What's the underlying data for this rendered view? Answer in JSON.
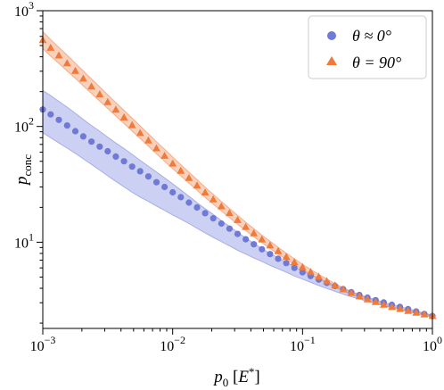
{
  "chart_data": {
    "type": "scatter",
    "xscale": "log",
    "yscale": "log",
    "xlim": [
      0.001,
      1
    ],
    "ylim": [
      1.8,
      1000
    ],
    "xlabel": "p_0 [E^*]",
    "ylabel": "p_conc",
    "xticks": [
      {
        "value": 0.001,
        "base": "10",
        "exp": "−3"
      },
      {
        "value": 0.01,
        "base": "10",
        "exp": "−2"
      },
      {
        "value": 0.1,
        "base": "10",
        "exp": "−1"
      },
      {
        "value": 1,
        "base": "10",
        "exp": "0"
      }
    ],
    "yticks": [
      {
        "value": 10,
        "base": "10",
        "exp": "1"
      },
      {
        "value": 100,
        "base": "10",
        "exp": "2"
      },
      {
        "value": 1000,
        "base": "10",
        "exp": "3"
      }
    ],
    "legend_position": "top-right",
    "series": [
      {
        "name": "θ ≈ 0°",
        "legend_label": "θ ≈ 0°",
        "marker": "circle",
        "color": "#6f79d6",
        "band_color": "#9aa2e6",
        "x": [
          0.001,
          0.00115,
          0.00133,
          0.00154,
          0.00178,
          0.00205,
          0.00237,
          0.00274,
          0.00316,
          0.00365,
          0.00422,
          0.00487,
          0.00562,
          0.0065,
          0.0075,
          0.00866,
          0.01,
          0.01155,
          0.01334,
          0.0154,
          0.01778,
          0.02054,
          0.02371,
          0.02738,
          0.03162,
          0.03652,
          0.04217,
          0.0487,
          0.05623,
          0.06494,
          0.07499,
          0.0866,
          0.1,
          0.11548,
          0.13335,
          0.15399,
          0.17783,
          0.20535,
          0.23714,
          0.27384,
          0.31623,
          0.36517,
          0.4217,
          0.48697,
          0.56234,
          0.64938,
          0.74989,
          0.86596,
          1.0
        ],
        "y": [
          140,
          127,
          114,
          102,
          91,
          82,
          74,
          67,
          61,
          55,
          50,
          45,
          41,
          37,
          33,
          30,
          27,
          24.5,
          22,
          20,
          17.8,
          16.1,
          14.5,
          13.1,
          11.8,
          10.6,
          9.6,
          8.7,
          7.9,
          7.2,
          6.6,
          6.0,
          5.5,
          5.1,
          4.75,
          4.45,
          4.18,
          3.93,
          3.7,
          3.5,
          3.32,
          3.16,
          3.02,
          2.88,
          2.76,
          2.64,
          2.52,
          2.4,
          2.3
        ],
        "band_lower": [
          88,
          80,
          72,
          65,
          58.5,
          52.5,
          47,
          42,
          37.5,
          33.5,
          30,
          27,
          24.5,
          22.5,
          20.5,
          18.8,
          17.2,
          15.8,
          14.5,
          13.2,
          12,
          11,
          10.1,
          9.3,
          8.5,
          7.9,
          7.3,
          6.8,
          6.3,
          5.9,
          5.5,
          5.1,
          4.8,
          4.5,
          4.22,
          3.98,
          3.76,
          3.56,
          3.38,
          3.22,
          3.08,
          2.95,
          2.83,
          2.72,
          2.62,
          2.52,
          2.43,
          2.34,
          2.26
        ],
        "band_upper": [
          205,
          185,
          165,
          147,
          130,
          115,
          102,
          91,
          81,
          72,
          64.5,
          57.5,
          51,
          45.5,
          40.5,
          36,
          32,
          28.3,
          25,
          22,
          19.5,
          17.4,
          15.4,
          13.7,
          12.2,
          10.9,
          9.8,
          8.8,
          8.0,
          7.3,
          6.7,
          6.15,
          5.68,
          5.25,
          4.88,
          4.55,
          4.25,
          3.98,
          3.74,
          3.53,
          3.35,
          3.18,
          3.03,
          2.9,
          2.78,
          2.66,
          2.55,
          2.44,
          2.34
        ]
      },
      {
        "name": "θ = 90°",
        "legend_label": "θ = 90°",
        "marker": "triangle",
        "color": "#f07a3a",
        "band_color": "#f4a27a",
        "x": [
          0.001,
          0.00115,
          0.00133,
          0.00154,
          0.00178,
          0.00205,
          0.00237,
          0.00274,
          0.00316,
          0.00365,
          0.00422,
          0.00487,
          0.00562,
          0.0065,
          0.0075,
          0.00866,
          0.01,
          0.01155,
          0.01334,
          0.0154,
          0.01778,
          0.02054,
          0.02371,
          0.02738,
          0.03162,
          0.03652,
          0.04217,
          0.0487,
          0.05623,
          0.06494,
          0.07499,
          0.0866,
          0.1,
          0.11548,
          0.13335,
          0.15399,
          0.17783,
          0.20535,
          0.23714,
          0.27384,
          0.31623,
          0.36517,
          0.4217,
          0.48697,
          0.56234,
          0.64938,
          0.74989,
          0.86596,
          1.0
        ],
        "y": [
          560,
          480,
          412,
          353,
          303,
          260,
          222,
          190,
          163,
          140,
          120,
          103,
          88,
          76,
          65,
          56,
          48,
          41.5,
          36,
          31,
          27,
          23.5,
          20.5,
          17.9,
          15.6,
          13.6,
          12.0,
          10.6,
          9.4,
          8.4,
          7.5,
          6.75,
          6.1,
          5.55,
          5.05,
          4.62,
          4.25,
          3.93,
          3.66,
          3.42,
          3.22,
          3.05,
          2.9,
          2.77,
          2.66,
          2.56,
          2.47,
          2.39,
          2.32
        ],
        "band_lower": [
          470,
          405,
          350,
          301,
          260,
          224,
          193,
          166,
          143,
          123,
          106,
          91,
          78.5,
          67.5,
          58,
          50,
          43.2,
          37.4,
          32.4,
          28.1,
          24.4,
          21.3,
          18.6,
          16.3,
          14.3,
          12.6,
          11.1,
          9.9,
          8.8,
          7.9,
          7.1,
          6.4,
          5.8,
          5.28,
          4.83,
          4.43,
          4.09,
          3.79,
          3.54,
          3.32,
          3.13,
          2.97,
          2.83,
          2.71,
          2.6,
          2.51,
          2.42,
          2.34,
          2.27
        ],
        "band_upper": [
          660,
          565,
          483,
          413,
          353,
          302,
          258,
          220,
          188,
          161,
          138,
          118,
          101,
          86.5,
          74,
          63.5,
          54.5,
          46.8,
          40.3,
          34.7,
          29.9,
          25.9,
          22.5,
          19.6,
          17.1,
          14.9,
          13.1,
          11.5,
          10.2,
          9.05,
          8.05,
          7.2,
          6.45,
          5.83,
          5.28,
          4.81,
          4.4,
          4.05,
          3.75,
          3.5,
          3.28,
          3.1,
          2.94,
          2.8,
          2.68,
          2.58,
          2.49,
          2.41,
          2.34
        ]
      }
    ]
  }
}
